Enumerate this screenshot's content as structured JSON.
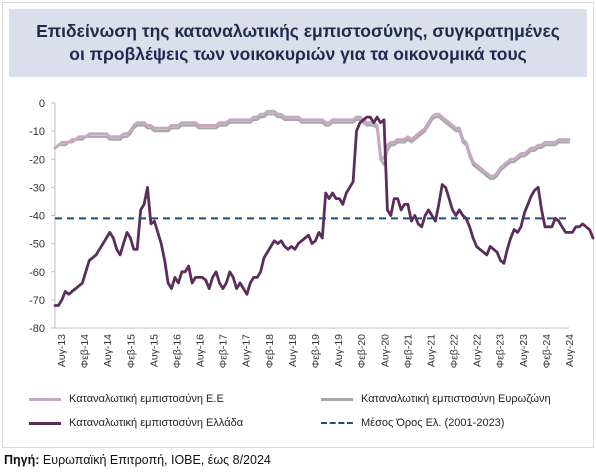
{
  "chart_data": {
    "type": "line",
    "title": "Επιδείνωση της καταναλωτικής εμπιστοσύνης, συγκρατημένες οι προβλέψεις των νοικοκυριών για τα οικονομικά τους",
    "xlabel": "",
    "ylabel": "",
    "ylim": [
      -80,
      0
    ],
    "yticks": [
      0,
      -10,
      -20,
      -30,
      -40,
      -50,
      -60,
      -70,
      -80
    ],
    "xticks": [
      "Αυγ-13",
      "Φεβ-14",
      "Αυγ-14",
      "Φεβ-15",
      "Αυγ-15",
      "Φεβ-16",
      "Αυγ-16",
      "Φεβ-17",
      "Αυγ-17",
      "Φεβ-18",
      "Αυγ-18",
      "Φεβ-19",
      "Αυγ-19",
      "Φεβ-20",
      "Αυγ-20",
      "Φεβ-21",
      "Αυγ-21",
      "Φεβ-22",
      "Αυγ-22",
      "Φεβ-23",
      "Αυγ-23",
      "Φεβ-24",
      "Αυγ-24"
    ],
    "x_start": "Αυγ-13",
    "x_end": "Αυγ-24",
    "grid": false,
    "legend_position": "bottom",
    "series": [
      {
        "name": "Καταναλωτική εμπιστοσύνη Ε.Ε",
        "color": "#c7a8c3",
        "style": "solid",
        "values": [
          -16,
          -15,
          -14,
          -14,
          -14,
          -13,
          -13,
          -12,
          -12,
          -12,
          -11,
          -11,
          -11,
          -11,
          -11,
          -11,
          -12,
          -12,
          -12,
          -12,
          -11,
          -11,
          -10,
          -8,
          -7,
          -7,
          -7,
          -8,
          -8,
          -9,
          -9,
          -9,
          -9,
          -9,
          -8,
          -8,
          -8,
          -7,
          -7,
          -7,
          -7,
          -7,
          -8,
          -8,
          -8,
          -8,
          -8,
          -8,
          -7,
          -7,
          -7,
          -6,
          -6,
          -6,
          -6,
          -6,
          -6,
          -6,
          -5,
          -5,
          -4,
          -4,
          -3,
          -3,
          -3,
          -4,
          -4,
          -5,
          -5,
          -5,
          -5,
          -5,
          -6,
          -6,
          -6,
          -6,
          -6,
          -6,
          -6,
          -7,
          -7,
          -6,
          -6,
          -6,
          -6,
          -6,
          -6,
          -6,
          -5,
          -5,
          -6,
          -7,
          -7,
          -7,
          -8,
          -19,
          -20,
          -15,
          -14,
          -14,
          -13,
          -13,
          -13,
          -12,
          -13,
          -12,
          -11,
          -10,
          -9,
          -7,
          -5,
          -4,
          -4,
          -5,
          -6,
          -7,
          -8,
          -9,
          -9,
          -13,
          -14,
          -18,
          -21,
          -22,
          -23,
          -24,
          -25,
          -26,
          -26,
          -25,
          -23,
          -22,
          -21,
          -20,
          -20,
          -19,
          -18,
          -18,
          -17,
          -16,
          -16,
          -15,
          -15,
          -14,
          -14,
          -14,
          -14,
          -13,
          -13,
          -13,
          -13
        ]
      },
      {
        "name": "Καταναλωτική εμπιστοσύνη Ευρωζώνη",
        "color": "#a8a8a8",
        "style": "solid",
        "values": [
          -16,
          -15,
          -15,
          -15,
          -14,
          -14,
          -13,
          -13,
          -13,
          -12,
          -12,
          -12,
          -12,
          -12,
          -12,
          -12,
          -13,
          -13,
          -13,
          -13,
          -12,
          -12,
          -11,
          -9,
          -8,
          -8,
          -8,
          -9,
          -9,
          -10,
          -10,
          -10,
          -10,
          -10,
          -9,
          -9,
          -9,
          -8,
          -8,
          -8,
          -8,
          -8,
          -9,
          -9,
          -9,
          -9,
          -9,
          -9,
          -8,
          -8,
          -8,
          -7,
          -7,
          -7,
          -7,
          -7,
          -7,
          -7,
          -6,
          -6,
          -5,
          -5,
          -4,
          -4,
          -4,
          -5,
          -5,
          -6,
          -6,
          -6,
          -6,
          -6,
          -7,
          -7,
          -7,
          -7,
          -7,
          -7,
          -7,
          -8,
          -8,
          -7,
          -7,
          -7,
          -7,
          -7,
          -7,
          -7,
          -6,
          -6,
          -7,
          -8,
          -8,
          -8,
          -9,
          -20,
          -22,
          -17,
          -15,
          -15,
          -14,
          -14,
          -14,
          -13,
          -14,
          -13,
          -12,
          -11,
          -10,
          -8,
          -6,
          -5,
          -5,
          -6,
          -7,
          -8,
          -9,
          -10,
          -10,
          -14,
          -15,
          -19,
          -22,
          -23,
          -24,
          -25,
          -26,
          -27,
          -27,
          -26,
          -24,
          -23,
          -22,
          -21,
          -21,
          -20,
          -19,
          -19,
          -18,
          -17,
          -17,
          -16,
          -16,
          -15,
          -15,
          -15,
          -15,
          -14,
          -14,
          -14,
          -14
        ]
      },
      {
        "name": "Καταναλωτική εμπιστοσύνη Ελλάδα",
        "color": "#5c2d5a",
        "style": "solid",
        "values": [
          -72,
          -72,
          -70,
          -67,
          -68,
          -67,
          -66,
          -65,
          -64,
          -60,
          -56,
          -55,
          -54,
          -52,
          -50,
          -48,
          -46,
          -48,
          -52,
          -54,
          -50,
          -46,
          -48,
          -52,
          -52,
          -38,
          -36,
          -30,
          -43,
          -42,
          -46,
          -50,
          -56,
          -64,
          -66,
          -62,
          -64,
          -60,
          -60,
          -58,
          -64,
          -62,
          -62,
          -62,
          -63,
          -66,
          -62,
          -60,
          -64,
          -66,
          -64,
          -60,
          -62,
          -66,
          -64,
          -66,
          -68,
          -64,
          -62,
          -62,
          -60,
          -55,
          -53,
          -51,
          -49,
          -50,
          -49,
          -51,
          -52,
          -51,
          -52,
          -50,
          -49,
          -48,
          -47,
          -50,
          -49,
          -46,
          -48,
          -32,
          -34,
          -32,
          -34,
          -34,
          -36,
          -32,
          -30,
          -28,
          -10,
          -7,
          -6,
          -5,
          -5,
          -7,
          -5,
          -7,
          -6,
          -38,
          -40,
          -34,
          -34,
          -38,
          -36,
          -36,
          -42,
          -40,
          -43,
          -44,
          -40,
          -38,
          -40,
          -42,
          -36,
          -29,
          -30,
          -34,
          -38,
          -40,
          -38,
          -40,
          -41,
          -44,
          -48,
          -51,
          -52,
          -53,
          -54,
          -51,
          -52,
          -53,
          -56,
          -57,
          -52,
          -48,
          -45,
          -46,
          -44,
          -39,
          -36,
          -33,
          -31,
          -30,
          -38,
          -44,
          -44,
          -44,
          -41,
          -42,
          -44,
          -46,
          -46,
          -46,
          -44,
          -44,
          -43,
          -44,
          -45,
          -48
        ]
      },
      {
        "name": "Μέσος Όρος Ελ. (2001-2023)",
        "color": "#1f4e79",
        "style": "dashed",
        "constant": -41
      }
    ]
  },
  "source": {
    "label": "Πηγή:",
    "text": " Ευρωπαϊκή Επιτροπή, ΙΟΒΕ, έως 8/2024"
  }
}
